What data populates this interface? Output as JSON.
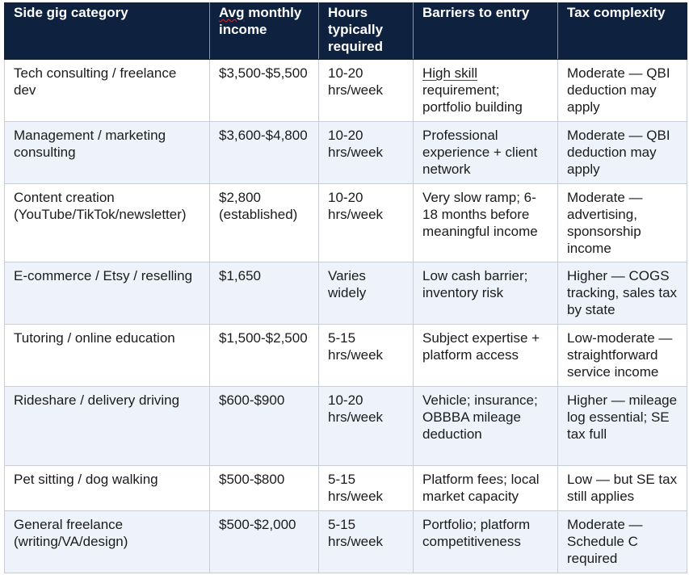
{
  "table": {
    "headers": [
      "Side gig category",
      "Avg monthly income",
      "Hours typically required",
      "Barriers to entry",
      "Tax complexity"
    ],
    "header_avg_word": "Avg",
    "header_avg_rest": " monthly income",
    "rows": [
      {
        "category": "Tech consulting / freelance dev",
        "income": "$3,500-$5,500",
        "hours": "10-20 hrs/week",
        "barriers_link": "High skill",
        "barriers_rest": " requirement; portfolio building",
        "tax": "Moderate — QBI deduction may apply"
      },
      {
        "category": "Management / marketing consulting",
        "income": "$3,600-$4,800",
        "hours": "10-20 hrs/week",
        "barriers": "Professional experience + client network",
        "tax": "Moderate — QBI deduction may apply"
      },
      {
        "category": "Content creation (YouTube/TikTok/newsletter)",
        "income": "$2,800 (established)",
        "hours": "10-20 hrs/week",
        "barriers": "Very slow ramp; 6-18 months before meaningful income",
        "tax": "Moderate — advertising, sponsorship income"
      },
      {
        "category": "E-commerce / Etsy / reselling",
        "income": "$1,650",
        "hours": "Varies widely",
        "barriers": "Low cash barrier; inventory risk",
        "tax": "Higher — COGS tracking, sales tax by state"
      },
      {
        "category": "Tutoring / online education",
        "income": "$1,500-$2,500",
        "hours": "5-15 hrs/week",
        "barriers": "Subject expertise + platform access",
        "tax": "Low-moderate — straightforward service income"
      },
      {
        "category": "Rideshare / delivery driving",
        "income": "$600-$900",
        "hours": "10-20 hrs/week",
        "barriers": "Vehicle; insurance; OBBBA mileage deduction",
        "tax": "Higher — mileage log essential; SE tax full"
      },
      {
        "category": "Pet sitting / dog walking",
        "income": "$500-$800",
        "hours": "5-15 hrs/week",
        "barriers": "Platform fees; local market capacity",
        "tax": "Low — but SE tax still applies"
      },
      {
        "category": "General freelance (writing/VA/design)",
        "income": "$500-$2,000",
        "hours": "5-15 hrs/week",
        "barriers": "Portfolio; platform competitiveness",
        "tax": "Moderate — Schedule C required"
      }
    ]
  }
}
